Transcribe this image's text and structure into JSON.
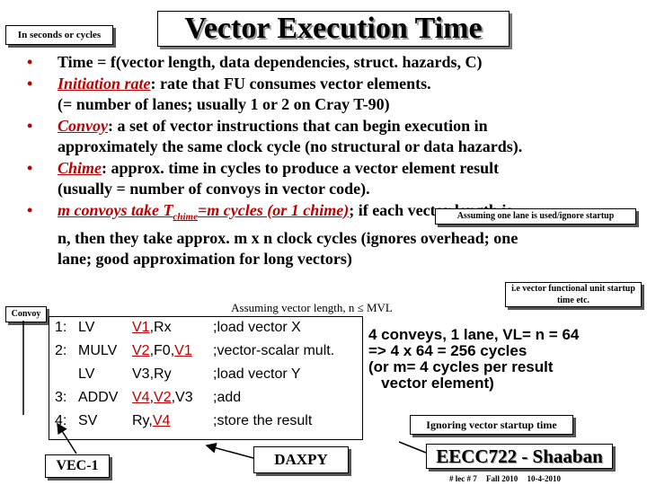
{
  "title": "Vector Execution Time",
  "units_box": "In seconds or cycles",
  "bullets": [
    {
      "parts": [
        {
          "t": "Time = f(vector length, data dependencies, struct. hazards, C)"
        }
      ]
    },
    {
      "parts": [
        {
          "t": "Initiation rate",
          "red": true
        },
        {
          "t": ": rate that FU consumes vector elements."
        }
      ],
      "cont": "(= number of lanes; usually 1 or  2 on Cray T-90)"
    },
    {
      "parts": [
        {
          "t": "Convoy",
          "red": true
        },
        {
          "t": ": a set of vector instructions that can begin execution in"
        }
      ],
      "cont": "approximately the same clock cycle (no structural or data hazards)."
    },
    {
      "parts": [
        {
          "t": "Chime",
          "red": true
        },
        {
          "t": ":  approx. time in cycles to produce a vector element result"
        }
      ],
      "cont": "(usually = number of convoys in vector code)."
    },
    {
      "parts": [
        {
          "t": "m convoys take T",
          "red": true
        },
        {
          "t": "chime",
          "red": true,
          "sub": true
        },
        {
          "t": "=m cycles (or 1 chime)",
          "red": true
        },
        {
          "t": "; if each vector length is"
        }
      ],
      "cont": "n, then they take approx.  m x n clock cycles (ignores overhead; one",
      "cont2": "lane; good approximation for long vectors)"
    }
  ],
  "lane_note": "Assuming one lane is used/ignore startup",
  "vfu_note": "i.e vector functional unit startup time etc.",
  "convoy_label": "Convoy",
  "mvl_note": "Assuming vector length,  n  ≤  MVL",
  "code": [
    {
      "num": "1:",
      "op": "LV",
      "args": [
        {
          "t": "V1",
          "u": true
        },
        {
          "t": ",Rx"
        }
      ],
      "comment": ";load vector X"
    },
    {
      "num": "2:",
      "op": "MULV",
      "args": [
        {
          "t": "V2",
          "u": true
        },
        {
          "t": ",F0,"
        },
        {
          "t": "V1",
          "u": true
        }
      ],
      "comment": ";vector-scalar mult."
    },
    {
      "num": "",
      "op": "LV",
      "args": [
        {
          "t": "V3,Ry"
        }
      ],
      "comment": ";load vector Y"
    },
    {
      "num": "3:",
      "op": "ADDV",
      "args": [
        {
          "t": "V4",
          "u": true
        },
        {
          "t": ","
        },
        {
          "t": "V2",
          "u": true
        },
        {
          "t": ",V3"
        }
      ],
      "comment": ";add"
    },
    {
      "num": "4:",
      "op": "SV",
      "args": [
        {
          "t": "Ry,"
        },
        {
          "t": "V4",
          "u": true
        }
      ],
      "comment": ";store the result"
    }
  ],
  "result_lines": [
    "4 conveys, 1 lane, VL= n = 64",
    "=> 4 x 64 = 256 cycles",
    "(or m= 4 cycles per result",
    "   vector element)"
  ],
  "ignore_note": "Ignoring vector startup time",
  "vec_label": "VEC-1",
  "daxpy_label": "DAXPY",
  "course": "EECC722 - Shaaban",
  "footer": [
    "#  lec # 7",
    "Fall 2010",
    "10-4-2010"
  ]
}
